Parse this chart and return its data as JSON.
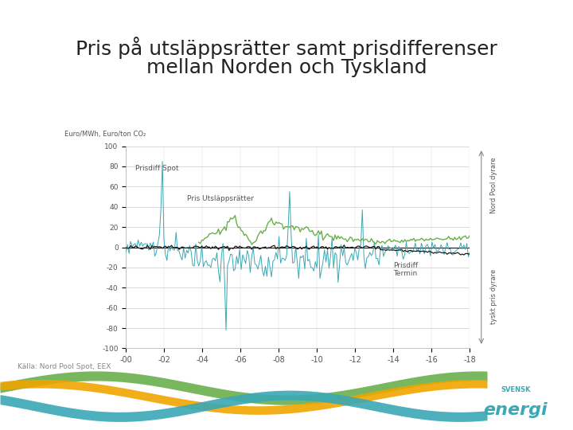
{
  "title_line1": "Pris på utsläppsrätter samt prisdifferenser",
  "title_line2": "mellan Norden och Tyskland",
  "ylabel": "Euro/MWh, Euro/ton CO₂",
  "xlabel_ticks": [
    "-00",
    "-02",
    "-04",
    "-06",
    "-08",
    "-10",
    "-12",
    "-14",
    "-16",
    "-18"
  ],
  "yticks": [
    -100,
    -80,
    -60,
    -40,
    -20,
    0,
    20,
    40,
    60,
    80,
    100
  ],
  "ylim": [
    -100,
    100
  ],
  "source_text": "Källa: Nord Pool Spot, EEX",
  "right_label_top": "Nord Pool dyrare",
  "right_label_bottom": "tyskt pris dyrare",
  "label_prisdiff_spot": "Prisdiff Spot",
  "label_prisdiff_termin": "Prisdiff\nTermin",
  "label_utslappsratter": "Pris Utsläppsrätter",
  "color_prisdiff_spot": "#3aa8b5",
  "color_utslappsratter": "#6ab04c",
  "color_prisdiff_termin": "#1a1a1a",
  "background_color": "#ffffff",
  "title_fontsize": 18,
  "axis_fontsize": 7,
  "source_fontsize": 6.5,
  "wave_color1": "#6ab04c",
  "wave_color2": "#f0a500",
  "wave_color3": "#3aa8b5",
  "logo_text": "energi",
  "logo_color": "#3aa8b5"
}
